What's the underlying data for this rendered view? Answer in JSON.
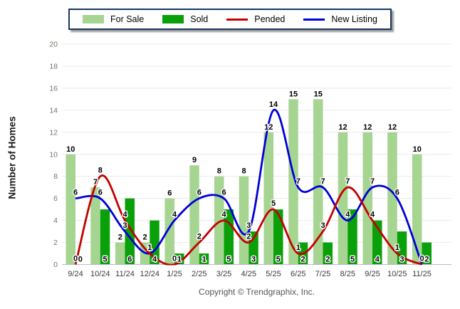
{
  "legend": {
    "items": [
      {
        "label": "For Sale"
      },
      {
        "label": "Sold"
      },
      {
        "label": "Pended"
      },
      {
        "label": "New Listing"
      }
    ]
  },
  "chart_data": {
    "type": "bar+line",
    "categories": [
      "9/24",
      "10/24",
      "11/24",
      "12/24",
      "1/25",
      "2/25",
      "3/25",
      "4/25",
      "5/25",
      "6/25",
      "7/25",
      "8/25",
      "9/25",
      "10/25",
      "11/25"
    ],
    "series": [
      {
        "name": "For Sale",
        "type": "bar",
        "color": "#A5D591",
        "values": [
          10,
          7,
          2,
          2,
          6,
          9,
          8,
          8,
          12,
          15,
          15,
          12,
          12,
          12,
          10
        ]
      },
      {
        "name": "Sold",
        "type": "bar",
        "color": "#0AA00A",
        "values": [
          0,
          5,
          6,
          4,
          1,
          1,
          5,
          3,
          5,
          2,
          2,
          5,
          4,
          3,
          2
        ]
      },
      {
        "name": "Pended",
        "type": "line",
        "color": "#C40000",
        "values": [
          0,
          8,
          4,
          1,
          0,
          2,
          4,
          2,
          5,
          1,
          3,
          7,
          4,
          1,
          0
        ]
      },
      {
        "name": "New Listing",
        "type": "line",
        "color": "#0000D8",
        "values": [
          6,
          6,
          3,
          1,
          4,
          6,
          6,
          3,
          14,
          7,
          7,
          4,
          7,
          6,
          0
        ]
      }
    ],
    "title": "",
    "xlabel": "",
    "ylabel": "Number of Homes",
    "ylim": [
      0,
      20
    ],
    "ytick_step": 2,
    "grid": true,
    "legend_position": "top-center"
  },
  "footer": {
    "copyright": "Copyright © Trendgraphix, Inc."
  }
}
